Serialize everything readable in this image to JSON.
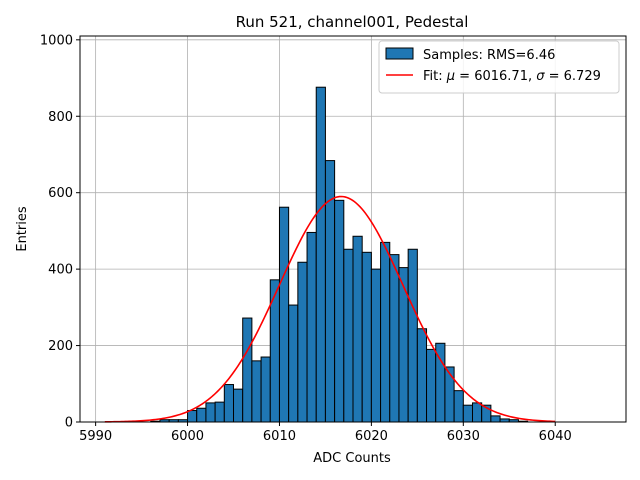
{
  "chart_data": {
    "type": "bar",
    "title": "Run 521, channel001, Pedestal",
    "xlabel": "ADC Counts",
    "ylabel": "Entries",
    "xlim": [
      5988.3,
      6047.7
    ],
    "ylim": [
      0,
      1010
    ],
    "xticks": [
      5990,
      6000,
      6010,
      6020,
      6030,
      6040
    ],
    "yticks": [
      0,
      200,
      400,
      600,
      800,
      1000
    ],
    "grid": true,
    "legend_position": "top-right",
    "colors": {
      "bars": "#1f77b4",
      "bar_edge": "#000000",
      "fit": "#ff0000"
    },
    "histogram": {
      "name": "Samples: RMS=6.46",
      "bin_edges": [
        5996,
        5997,
        5998,
        5999,
        6000,
        6001,
        6002,
        6003,
        6004,
        6005,
        6006,
        6007,
        6008,
        6009,
        6010,
        6011,
        6012,
        6013,
        6014,
        6015,
        6016,
        6017,
        6018,
        6019,
        6020,
        6021,
        6022,
        6023,
        6024,
        6025,
        6026,
        6027,
        6028,
        6029,
        6030,
        6031,
        6032,
        6033,
        6034,
        6035,
        6036,
        6037
      ],
      "counts": [
        2,
        6,
        6,
        6,
        30,
        36,
        50,
        52,
        98,
        86,
        272,
        160,
        170,
        372,
        562,
        306,
        418,
        496,
        876,
        684,
        580,
        452,
        486,
        444,
        400,
        470,
        438,
        404,
        452,
        244,
        190,
        206,
        144,
        82,
        44,
        50,
        44,
        16,
        8,
        6,
        2
      ]
    },
    "fit": {
      "name": "Fit: μ = 6016.71, σ = 6.729",
      "label_prefix": "Fit: ",
      "mu_symbol": "μ",
      "mu_text": " = 6016.71, ",
      "sigma_symbol": "σ",
      "sigma_text": " = 6.729",
      "mu": 6016.71,
      "sigma": 6.729,
      "peak": 590,
      "x_range": [
        5991,
        6040
      ]
    }
  }
}
